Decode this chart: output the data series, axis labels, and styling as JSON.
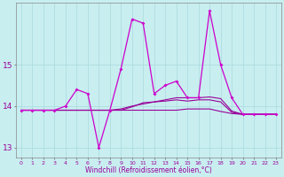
{
  "xlabel": "Windchill (Refroidissement éolien,°C)",
  "background_color": "#c8eef0",
  "grid_color": "#b0dde0",
  "line_color": "#cc00cc",
  "line_color2": "#990099",
  "hours": [
    0,
    1,
    2,
    3,
    4,
    5,
    6,
    7,
    8,
    9,
    10,
    11,
    12,
    13,
    14,
    15,
    16,
    17,
    18,
    19,
    20,
    21,
    22,
    23
  ],
  "series1": [
    13.9,
    13.9,
    13.9,
    13.9,
    14.0,
    14.4,
    14.3,
    13.0,
    13.9,
    14.9,
    16.1,
    16.0,
    14.3,
    14.5,
    14.6,
    14.2,
    14.2,
    16.3,
    15.0,
    14.2,
    13.8,
    13.8,
    13.8,
    13.8
  ],
  "series2": [
    13.9,
    13.9,
    13.9,
    13.9,
    13.9,
    13.9,
    13.9,
    13.9,
    13.9,
    13.9,
    13.9,
    13.9,
    13.9,
    13.9,
    13.9,
    13.93,
    13.93,
    13.93,
    13.87,
    13.82,
    13.8,
    13.8,
    13.8,
    13.8
  ],
  "series3": [
    13.9,
    13.9,
    13.9,
    13.9,
    13.9,
    13.9,
    13.9,
    13.9,
    13.9,
    13.93,
    14.0,
    14.05,
    14.1,
    14.15,
    14.2,
    14.2,
    14.2,
    14.22,
    14.18,
    13.88,
    13.8,
    13.8,
    13.8,
    13.8
  ],
  "series4": [
    13.9,
    13.9,
    13.9,
    13.9,
    13.9,
    13.9,
    13.9,
    13.9,
    13.9,
    13.9,
    13.98,
    14.08,
    14.1,
    14.12,
    14.15,
    14.12,
    14.15,
    14.15,
    14.1,
    13.85,
    13.8,
    13.8,
    13.8,
    13.8
  ],
  "ylim": [
    12.75,
    16.5
  ],
  "yticks": [
    13,
    14,
    15
  ],
  "xlim": [
    -0.5,
    23.5
  ]
}
